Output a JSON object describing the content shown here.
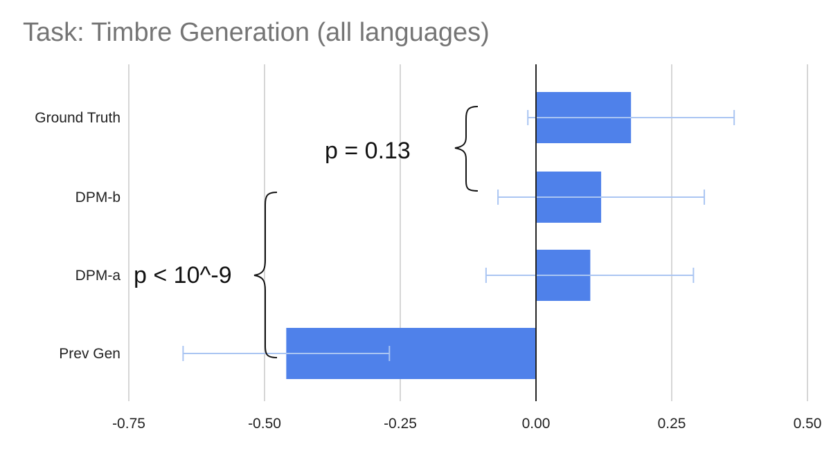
{
  "chart_data": {
    "type": "bar",
    "orientation": "horizontal",
    "title": "Task: Timbre Generation (all languages)",
    "xlabel": "",
    "ylabel": "",
    "xlim": [
      -0.75,
      0.5
    ],
    "x_ticks": [
      "-0.75",
      "-0.50",
      "-0.25",
      "0.00",
      "0.25",
      "0.50"
    ],
    "x_tick_values": [
      -0.75,
      -0.5,
      -0.25,
      0,
      0.25,
      0.5
    ],
    "grid": true,
    "legend": "none",
    "categories": [
      "Ground Truth",
      "DPM-b",
      "DPM-a",
      "Prev Gen"
    ],
    "values": [
      0.175,
      0.12,
      0.1,
      -0.46
    ],
    "error_low": [
      -0.015,
      -0.07,
      -0.092,
      -0.65
    ],
    "error_high": [
      0.365,
      0.31,
      0.29,
      -0.27
    ],
    "colors": {
      "bar": "#4f81ea",
      "error_bar": "#aac5f2",
      "grid": "#c8c8c8",
      "zero_line": "#222222"
    },
    "annotations": [
      {
        "text": "p = 0.13",
        "brackets": [
          "Ground Truth",
          "DPM-b"
        ]
      },
      {
        "text": "p < 10^-9",
        "brackets": [
          "DPM-b",
          "Prev Gen"
        ]
      }
    ]
  }
}
